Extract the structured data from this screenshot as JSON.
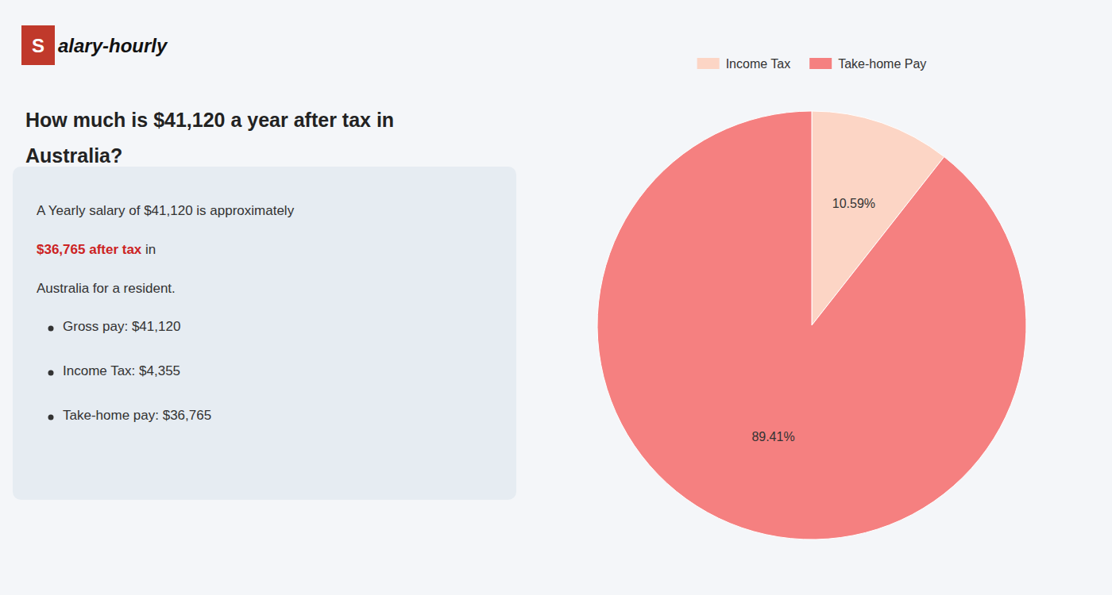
{
  "chart_data": {
    "type": "pie",
    "title": [
      "How much is $41,120 a year after tax in",
      "Australia?"
    ],
    "categories": [
      "Income Tax",
      "Take-home Pay"
    ],
    "values": [
      10.59,
      89.41
    ],
    "value_labels": [
      "10.59%",
      "89.41%"
    ],
    "colors": [
      "#fcd5c5",
      "#f58080"
    ],
    "data_labels": true,
    "legend": "top",
    "annotations": [
      {
        "text": "S",
        "color": "#c0392b"
      },
      {
        "text": "alary-hourly"
      },
      {
        "text": "A Yearly salary of $41,120 is approximately "
      },
      {
        "text": "$36,765 after tax",
        "color": "#cc2222"
      },
      {
        "text": " in"
      },
      {
        "text": "Australia for a resident."
      },
      {
        "text": "Gross pay: $41,120"
      },
      {
        "text": "Income Tax: $4,355"
      },
      {
        "text": "Take-home pay: $36,765"
      }
    ]
  }
}
